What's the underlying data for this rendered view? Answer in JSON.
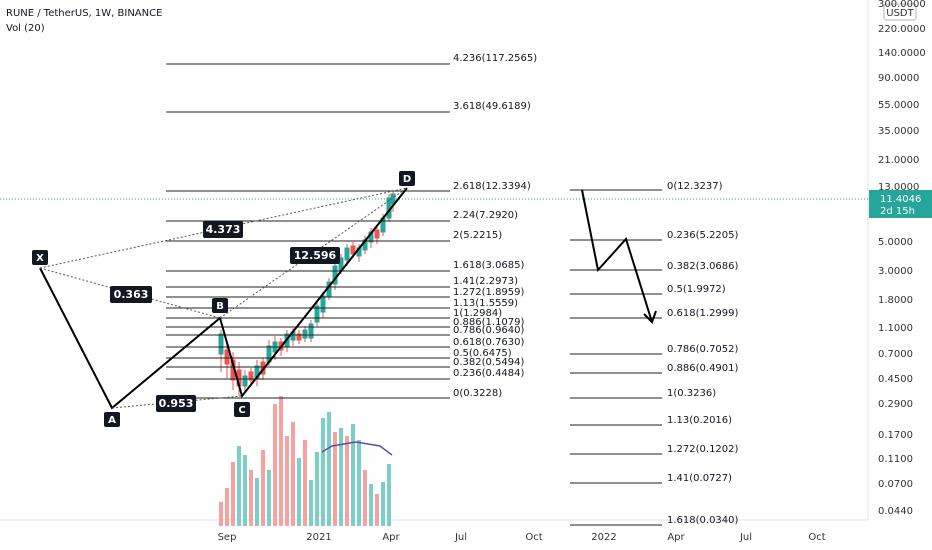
{
  "header": {
    "symbol": "RUNE / TetherUS, 1W, BINANCE",
    "indicator": "Vol (20)"
  },
  "price_axis": {
    "currency": "USDT",
    "labels": [
      "300.0000",
      "220.0000",
      "140.0000",
      "90.0000",
      "55.0000",
      "35.0000",
      "21.0000",
      "13.0000",
      "5.0000",
      "3.0000",
      "1.8000",
      "1.1000",
      "0.7000",
      "0.4500",
      "0.2900",
      "0.1700",
      "0.1100",
      "0.0700",
      "0.0440"
    ],
    "current": "11.4046",
    "countdown": "2d 15h"
  },
  "time_axis": [
    "Sep",
    "2021",
    "Apr",
    "Jul",
    "Oct",
    "2022",
    "Apr",
    "Jul",
    "Oct"
  ],
  "fib_left": [
    "4.236(117.2565)",
    "3.618(49.6189)",
    "2.618(12.3394)",
    "2.24(7.2920)",
    "2(5.2215)",
    "1.618(3.0685)",
    "1.41(2.2973)",
    "1.272(1.8959)",
    "1.13(1.5559)",
    "1(1.2984)",
    "0.886(1.1079)",
    "0.786(0.9640)",
    "0.618(0.7630)",
    "0.5(0.6475)",
    "0.382(0.5494)",
    "0.236(0.4484)",
    "0(0.3228)"
  ],
  "fib_right": [
    "0(12.3237)",
    "0.236(5.2205)",
    "0.382(3.0686)",
    "0.5(1.9972)",
    "0.618(1.2999)",
    "0.786(0.7052)",
    "0.886(0.4901)",
    "1(0.3236)",
    "1.13(0.2016)",
    "1.272(0.1202)",
    "1.41(0.0727)",
    "1.618(0.0340)"
  ],
  "pattern": {
    "points": [
      "X",
      "A",
      "B",
      "C",
      "D"
    ],
    "ratios": [
      "0.363",
      "0.953",
      "12.596",
      "4.373"
    ]
  }
}
